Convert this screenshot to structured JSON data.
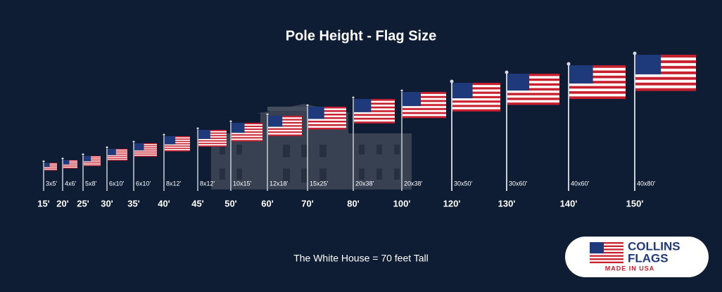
{
  "header": {
    "title": "Pole Height - Flag Size"
  },
  "poles": [
    {
      "height": "15'",
      "flag": "3x5'"
    },
    {
      "height": "20'",
      "flag": "4x6'"
    },
    {
      "height": "25'",
      "flag": "5x8'"
    },
    {
      "height": "30'",
      "flag": "6x10'"
    },
    {
      "height": "35'",
      "flag": "6x10'"
    },
    {
      "height": "40'",
      "flag": "8x12'"
    },
    {
      "height": "45'",
      "flag": "8x12'"
    },
    {
      "height": "50'",
      "flag": "10x15'"
    },
    {
      "height": "60'",
      "flag": "12x18'"
    },
    {
      "height": "70'",
      "flag": "15x25'"
    },
    {
      "height": "80'",
      "flag": "20x38'"
    },
    {
      "height": "100'",
      "flag": "20x38'"
    },
    {
      "height": "120'",
      "flag": "30x50'"
    },
    {
      "height": "130'",
      "flag": "30x60'"
    },
    {
      "height": "140'",
      "flag": "40x60'"
    },
    {
      "height": "150'",
      "flag": "40x80'"
    }
  ],
  "note": "The White House = 70 feet Tall",
  "logo": {
    "line1": "COLLINS",
    "line2": "FLAGS",
    "tagline": "MADE IN USA"
  }
}
